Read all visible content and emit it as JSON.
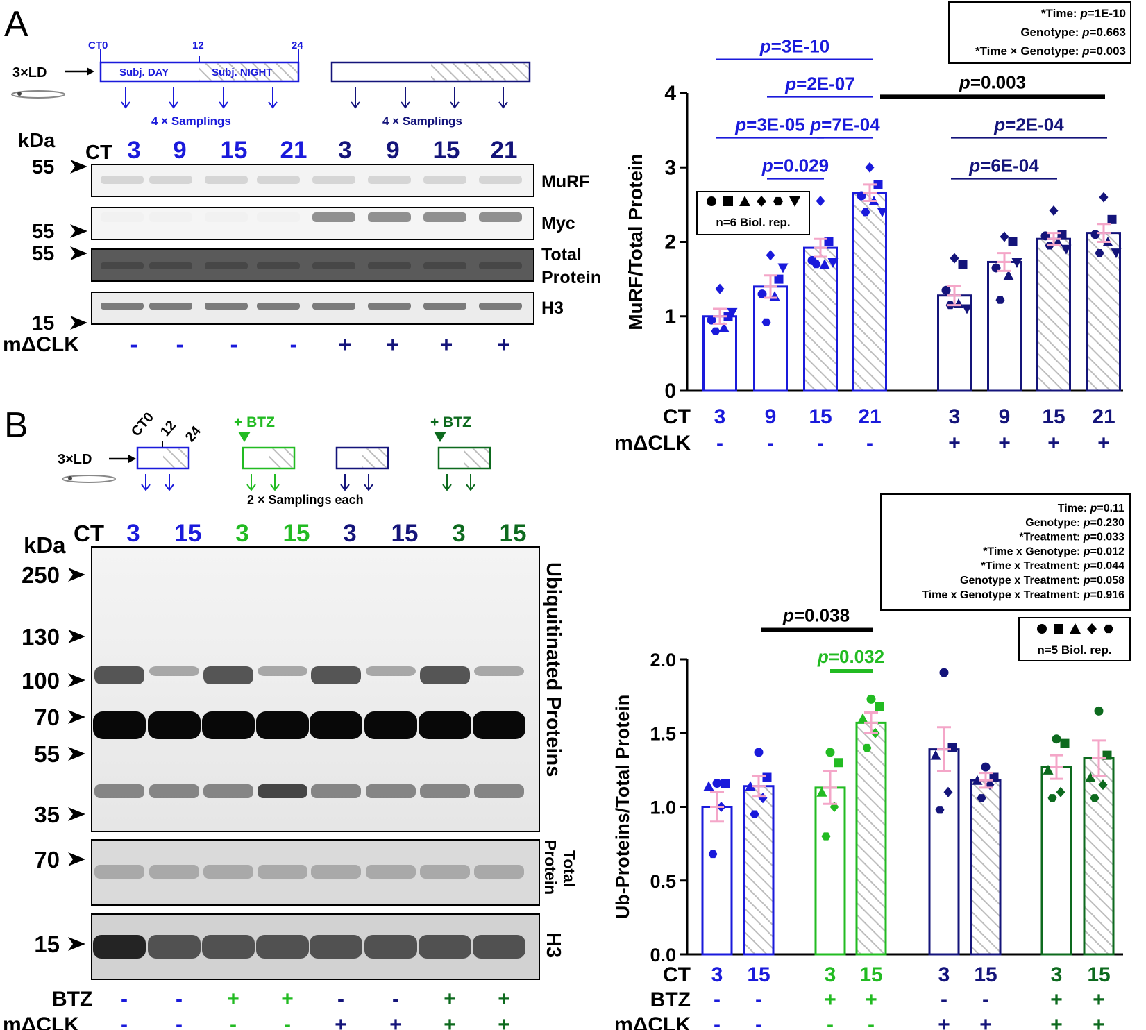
{
  "colors": {
    "blue": "#1a1adb",
    "navy": "#14147a",
    "green": "#22bb22",
    "darkgreen": "#0d6a1e",
    "pink": "#f4a6c8",
    "hatch": "#bdbdbd",
    "black": "#000000"
  },
  "panelA": {
    "letter": "A",
    "schematic": {
      "ld": "3×LD",
      "ticks": [
        "CT0",
        "12",
        "24"
      ],
      "day": "Subj. DAY",
      "night": "Subj. NIGHT",
      "samplings": "4 × Samplings"
    },
    "blot": {
      "kda": "kDa",
      "ct_label": "CT",
      "lanes": [
        "3",
        "9",
        "15",
        "21",
        "3",
        "9",
        "15",
        "21"
      ],
      "markers": [
        "55",
        "55",
        "55",
        "15"
      ],
      "bands": [
        "MuRF",
        "Myc",
        "Total",
        "Protein",
        "H3"
      ],
      "row_label": "mΔCLK",
      "mclk": [
        "-",
        "-",
        "-",
        "-",
        "+",
        "+",
        "+",
        "+"
      ]
    }
  },
  "panelB": {
    "letter": "B",
    "schematic": {
      "ld": "3×LD",
      "ticks": [
        "CT0",
        "12",
        "24"
      ],
      "btz": "+ BTZ",
      "samplings": "2 × Samplings each"
    },
    "blot": {
      "kda": "kDa",
      "ct_label": "CT",
      "lanes": [
        "3",
        "15",
        "3",
        "15",
        "3",
        "15",
        "3",
        "15"
      ],
      "markers": [
        "250",
        "130",
        "100",
        "70",
        "55",
        "35",
        "70",
        "15"
      ],
      "bands": [
        "Ubiquitinated Proteins",
        "Total",
        "Protein",
        "H3"
      ],
      "btz_label": "BTZ",
      "btz": [
        "-",
        "-",
        "+",
        "+",
        "-",
        "-",
        "+",
        "+"
      ],
      "mclk_label": "mΔCLK",
      "mclk": [
        "-",
        "-",
        "-",
        "-",
        "+",
        "+",
        "+",
        "+"
      ]
    }
  },
  "chart_data": [
    {
      "type": "bar",
      "ylabel": "MuRF/Total Protein",
      "ylim": [
        0,
        4
      ],
      "yticks": [
        "0",
        "1",
        "2",
        "3",
        "4"
      ],
      "categories": [
        "3",
        "9",
        "15",
        "21",
        "3",
        "9",
        "15",
        "21"
      ],
      "row1_label": "CT",
      "row2_label": "mΔCLK",
      "row2": [
        "-",
        "-",
        "-",
        "-",
        "+",
        "+",
        "+",
        "+"
      ],
      "values": [
        1.0,
        1.4,
        1.92,
        2.66,
        1.28,
        1.73,
        2.04,
        2.12
      ],
      "sem": [
        0.1,
        0.15,
        0.12,
        0.11,
        0.13,
        0.12,
        0.08,
        0.12
      ],
      "points": [
        [
          1.37,
          1.0,
          0.95,
          0.85,
          0.8,
          1.05
        ],
        [
          1.82,
          1.5,
          1.3,
          1.27,
          0.92,
          1.65
        ],
        [
          2.55,
          2.0,
          1.75,
          1.7,
          1.7,
          1.72
        ],
        [
          3.0,
          2.77,
          2.62,
          2.55,
          2.4,
          2.4
        ],
        [
          1.78,
          1.7,
          1.35,
          1.17,
          1.15,
          1.1
        ],
        [
          2.07,
          2.0,
          1.65,
          1.55,
          1.22,
          1.72
        ],
        [
          2.42,
          2.1,
          2.08,
          2.0,
          1.95,
          1.9
        ],
        [
          2.6,
          2.3,
          2.1,
          2.0,
          1.85,
          1.85
        ]
      ],
      "brackets": [
        {
          "text": "p=3E-10",
          "from": 0,
          "to": 3,
          "y": 4.45
        },
        {
          "text": "p=2E-07",
          "from": 1,
          "to": 3,
          "y": 3.95
        },
        {
          "text": "p=3E-05",
          "from": 0,
          "to": 2,
          "y": 3.4
        },
        {
          "text": "p=7E-04",
          "from": 2,
          "to": 3,
          "y": 3.4
        },
        {
          "text": "p=0.029",
          "from": 1,
          "to": 2,
          "y": 2.85
        },
        {
          "text": "p=2E-04",
          "from": 4,
          "to": 7,
          "y": 3.4
        },
        {
          "text": "p=6E-04",
          "from": 4,
          "to": 6,
          "y": 2.85
        }
      ],
      "black_bracket": {
        "text": "p=0.003",
        "y": 3.95
      },
      "stats": [
        "*Time: p=1E-10",
        "Genotype: p=0.663",
        "*Time × Genotype: p=0.003"
      ],
      "legend": "n=6 Biol. rep."
    },
    {
      "type": "bar",
      "ylabel": "Ub-Proteins/Total Protein",
      "ylim": [
        0,
        2
      ],
      "yticks": [
        "0.0",
        "0.5",
        "1.0",
        "1.5",
        "2.0"
      ],
      "categories": [
        "3",
        "15",
        "3",
        "15",
        "3",
        "15",
        "3",
        "15"
      ],
      "row1_label": "CT",
      "row2_label": "BTZ",
      "row2": [
        "-",
        "-",
        "+",
        "+",
        "-",
        "-",
        "+",
        "+"
      ],
      "row3_label": "mΔCLK",
      "row3": [
        "-",
        "-",
        "-",
        "-",
        "+",
        "+",
        "+",
        "+"
      ],
      "values": [
        1.0,
        1.14,
        1.13,
        1.57,
        1.39,
        1.18,
        1.27,
        1.33
      ],
      "sem": [
        0.1,
        0.07,
        0.11,
        0.07,
        0.15,
        0.05,
        0.08,
        0.12
      ],
      "points": [
        [
          1.16,
          1.16,
          1.14,
          1.0,
          0.68
        ],
        [
          1.37,
          1.2,
          1.14,
          1.06,
          0.95
        ],
        [
          1.37,
          1.3,
          1.1,
          1.0,
          0.8
        ],
        [
          1.73,
          1.68,
          1.6,
          1.5,
          1.4
        ],
        [
          1.91,
          1.4,
          1.35,
          1.1,
          0.98
        ],
        [
          1.27,
          1.2,
          1.18,
          1.15,
          1.06
        ],
        [
          1.46,
          1.43,
          1.25,
          1.1,
          1.06
        ],
        [
          1.65,
          1.35,
          1.2,
          1.15,
          1.06
        ]
      ],
      "black_bracket": {
        "text": "p=0.038",
        "y": 2.2
      },
      "green_bracket": {
        "text": "p=0.032",
        "y": 1.92
      },
      "stats": [
        "Time: p=0.11",
        "Genotype: p=0.230",
        "*Treatment: p=0.033",
        "*Time x Genotype: p=0.012",
        "*Time x Treatment: p=0.044",
        "Genotype x Treatment: p=0.058",
        "Time x Genotype x Treatment: p=0.916"
      ],
      "legend": "n=5 Biol. rep."
    }
  ]
}
